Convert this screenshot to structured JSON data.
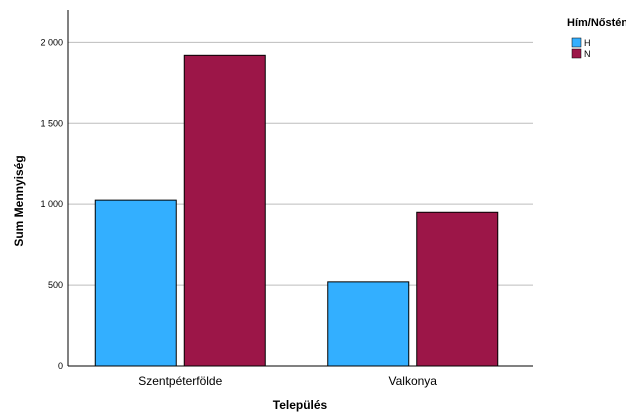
{
  "chart_data": {
    "type": "bar",
    "categories": [
      "Szentpéterfölde",
      "Valkonya"
    ],
    "series": [
      {
        "name": "H",
        "values": [
          1025,
          520
        ],
        "color": "#33afff"
      },
      {
        "name": "N",
        "values": [
          1920,
          950
        ],
        "color": "#9c1648"
      }
    ],
    "xlabel": "Település",
    "ylabel": "Sum Mennyiség",
    "ylim": [
      0,
      2200
    ],
    "yticks": [
      0,
      500,
      1000,
      1500,
      2000
    ],
    "ytick_labels": [
      "0",
      "500",
      "1 000",
      "1 500",
      "2 000"
    ],
    "legend": {
      "title": "Hím/Nőstény",
      "placement": "top-right"
    },
    "grid": true
  }
}
